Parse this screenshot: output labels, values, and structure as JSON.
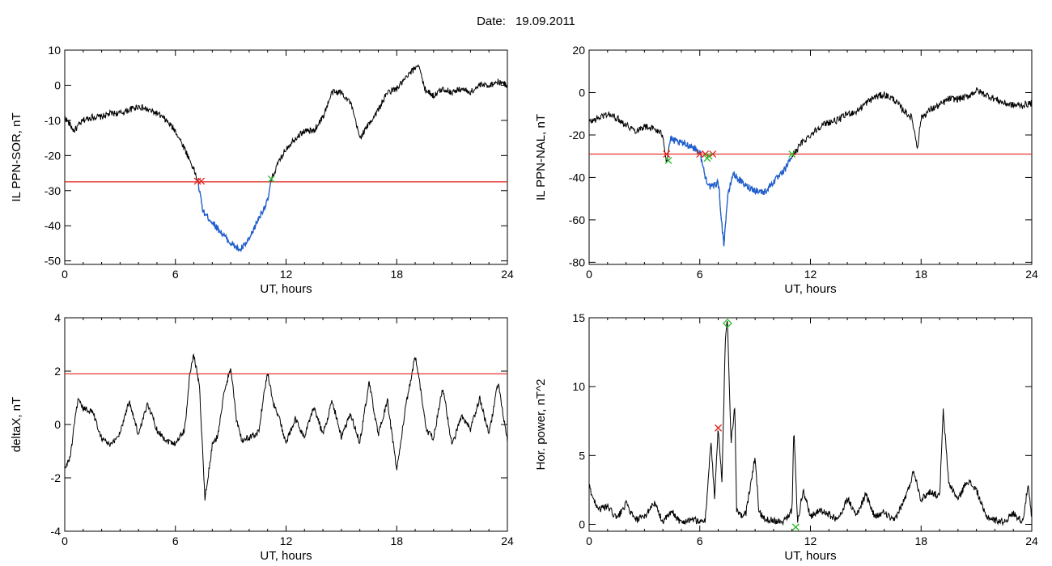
{
  "header": {
    "date_label": "Date:",
    "date_value": "19.09.2011"
  },
  "chart_data": [
    {
      "type": "line",
      "ylabel": "IL PPN-SOR, nT",
      "xlabel": "UT, hours",
      "xlim": [
        0,
        24
      ],
      "ylim": [
        -51,
        10
      ],
      "xticks": [
        0,
        6,
        12,
        18,
        24
      ],
      "yticks": [
        10,
        0,
        -10,
        -20,
        -30,
        -40,
        -50
      ],
      "threshold": -27.5,
      "colors": {
        "trace": "#000000",
        "highlight": "#1f5fd0",
        "threshold": "#e0201a",
        "start_marker": "#e0201a",
        "end_marker": "#22bb22"
      },
      "highlight_range": [
        7.2,
        11.2
      ],
      "markers": [
        {
          "x": 7.2,
          "y": -27.3,
          "shape": "x",
          "color": "start"
        },
        {
          "x": 7.4,
          "y": -27.3,
          "shape": "x",
          "color": "start"
        },
        {
          "x": 11.2,
          "y": -26.7,
          "shape": "x",
          "color": "end"
        }
      ],
      "x": [
        0,
        0.5,
        1,
        1.5,
        2,
        2.5,
        3,
        3.5,
        4,
        4.5,
        5,
        5.5,
        6,
        6.5,
        7,
        7.2,
        7.5,
        8,
        8.5,
        9,
        9.5,
        10,
        10.5,
        11,
        11.2,
        11.5,
        12,
        12.5,
        13,
        13.5,
        14,
        14.5,
        15,
        15.5,
        16,
        16.5,
        17,
        17.5,
        18,
        18.5,
        19,
        19.2,
        19.5,
        20,
        20.5,
        21,
        21.5,
        22,
        22.5,
        23,
        23.5,
        24
      ],
      "y": [
        -9,
        -13,
        -10,
        -9,
        -9,
        -8,
        -8,
        -7,
        -6,
        -7,
        -8,
        -10,
        -13,
        -18,
        -24,
        -27,
        -36,
        -39,
        -42,
        -45,
        -47,
        -44,
        -38,
        -33,
        -27,
        -23,
        -18,
        -15,
        -13,
        -13,
        -9,
        -2,
        -2,
        -5,
        -15,
        -11,
        -7,
        -2,
        -1,
        2,
        5,
        6,
        -1,
        -3,
        -1,
        -2,
        -1,
        -2,
        0,
        0,
        1,
        0
      ],
      "noise": 0.9
    },
    {
      "type": "line",
      "ylabel": "IL PPN-NAL, nT",
      "xlabel": "UT, hours",
      "xlim": [
        0,
        24
      ],
      "ylim": [
        -81,
        20
      ],
      "xticks": [
        0,
        6,
        12,
        18,
        24
      ],
      "yticks": [
        20,
        0,
        -20,
        -40,
        -60,
        -80
      ],
      "threshold": -29,
      "colors": {
        "trace": "#000000",
        "highlight": "#1f5fd0",
        "threshold": "#e0201a",
        "start_marker": "#e0201a",
        "end_marker": "#22bb22"
      },
      "highlight_range": [
        4.3,
        11.0
      ],
      "markers": [
        {
          "x": 4.2,
          "y": -29,
          "shape": "x",
          "color": "start"
        },
        {
          "x": 4.3,
          "y": -32,
          "shape": "x",
          "color": "end"
        },
        {
          "x": 6.0,
          "y": -29,
          "shape": "x",
          "color": "start"
        },
        {
          "x": 6.3,
          "y": -29,
          "shape": "x",
          "color": "start"
        },
        {
          "x": 6.4,
          "y": -31,
          "shape": "x",
          "color": "end"
        },
        {
          "x": 6.7,
          "y": -29,
          "shape": "x",
          "color": "start"
        },
        {
          "x": 6.5,
          "y": -30,
          "shape": "x",
          "color": "end"
        },
        {
          "x": 11.0,
          "y": -29,
          "shape": "x",
          "color": "end"
        }
      ],
      "x": [
        0,
        0.5,
        1,
        1.5,
        2,
        2.5,
        3,
        3.5,
        4,
        4.2,
        4.4,
        5,
        5.5,
        6,
        6.3,
        6.6,
        7,
        7.3,
        7.5,
        7.8,
        8,
        8.5,
        9,
        9.5,
        10,
        10.5,
        11,
        11.5,
        12,
        12.5,
        13,
        13.5,
        14,
        14.5,
        15,
        15.5,
        16,
        16.5,
        17,
        17.5,
        17.8,
        18,
        18.5,
        19,
        19.5,
        20,
        20.5,
        21,
        21.5,
        22,
        22.5,
        23,
        23.5,
        24
      ],
      "y": [
        -14,
        -12,
        -10,
        -12,
        -15,
        -18,
        -16,
        -17,
        -20,
        -33,
        -22,
        -24,
        -25,
        -28,
        -40,
        -45,
        -42,
        -72,
        -50,
        -38,
        -40,
        -44,
        -46,
        -47,
        -42,
        -38,
        -30,
        -24,
        -20,
        -16,
        -14,
        -13,
        -10,
        -9,
        -5,
        -2,
        -1,
        -3,
        -8,
        -12,
        -26,
        -12,
        -8,
        -6,
        -3,
        -3,
        -2,
        1,
        -1,
        -3,
        -5,
        -6,
        -6,
        -5
      ],
      "noise": 1.6
    },
    {
      "type": "line",
      "ylabel": "deltaX, nT",
      "xlabel": "UT, hours",
      "xlim": [
        0,
        24
      ],
      "ylim": [
        -4,
        4
      ],
      "xticks": [
        0,
        6,
        12,
        18,
        24
      ],
      "yticks": [
        4,
        2,
        0,
        -2,
        -4
      ],
      "threshold": 1.9,
      "colors": {
        "trace": "#000000",
        "threshold": "#e0201a"
      },
      "markers": [],
      "x": [
        0,
        0.3,
        0.7,
        1,
        1.5,
        2,
        2.5,
        3,
        3.5,
        4,
        4.5,
        5,
        5.5,
        6,
        6.5,
        6.8,
        7,
        7.3,
        7.6,
        7.8,
        8,
        8.3,
        8.6,
        9,
        9.3,
        9.6,
        10,
        10.5,
        11,
        11.3,
        11.6,
        12,
        12.5,
        13,
        13.5,
        14,
        14.5,
        15,
        15.5,
        16,
        16.5,
        17,
        17.5,
        18,
        18.5,
        19,
        19.3,
        19.6,
        20,
        20.5,
        21,
        21.5,
        22,
        22.5,
        23,
        23.5,
        23.8,
        24
      ],
      "y": [
        -1.7,
        -1.2,
        0.9,
        0.6,
        0.5,
        -0.5,
        -0.8,
        -0.3,
        0.9,
        -0.4,
        0.8,
        -0.2,
        -0.6,
        -0.7,
        -0.2,
        2.0,
        2.6,
        1.5,
        -2.8,
        -1.8,
        -0.8,
        -0.4,
        1.0,
        2.2,
        0.2,
        -0.6,
        -0.5,
        -0.3,
        2.0,
        0.8,
        0.3,
        -0.7,
        0.2,
        -0.5,
        0.7,
        -0.4,
        0.9,
        -0.5,
        0.4,
        -0.7,
        1.6,
        -0.4,
        0.9,
        -1.7,
        0.7,
        2.6,
        1.3,
        -0.2,
        -0.5,
        1.4,
        -0.8,
        0.3,
        -0.2,
        1.0,
        -0.4,
        1.6,
        0.2,
        -0.6
      ],
      "noise": 0.12
    },
    {
      "type": "line",
      "ylabel": "Hor. power, nT^2",
      "xlabel": "UT, hours",
      "xlim": [
        0,
        24
      ],
      "ylim": [
        -0.5,
        15
      ],
      "xticks": [
        0,
        6,
        12,
        18,
        24
      ],
      "yticks": [
        15,
        10,
        5,
        0
      ],
      "colors": {
        "trace": "#000000",
        "start_marker": "#e0201a",
        "end_marker": "#22bb22"
      },
      "markers": [
        {
          "x": 7.0,
          "y": 7.0,
          "shape": "x",
          "color": "start"
        },
        {
          "x": 7.5,
          "y": 14.6,
          "shape": "diamond",
          "color": "end"
        },
        {
          "x": 11.2,
          "y": -0.2,
          "shape": "x",
          "color": "end"
        }
      ],
      "x": [
        0,
        0.3,
        0.6,
        1,
        1.5,
        2,
        2.5,
        3,
        3.5,
        4,
        4.5,
        5,
        5.5,
        6,
        6.3,
        6.6,
        6.8,
        7,
        7.2,
        7.4,
        7.5,
        7.7,
        7.9,
        8,
        8.2,
        8.5,
        9,
        9.2,
        9.5,
        10,
        10.5,
        11,
        11.1,
        11.3,
        11.6,
        12,
        12.5,
        13,
        13.5,
        14,
        14.5,
        15,
        15.5,
        16,
        16.5,
        17,
        17.3,
        17.6,
        18,
        18.5,
        19,
        19.2,
        19.5,
        20,
        20.5,
        21,
        21.5,
        22,
        22.5,
        23,
        23.5,
        23.8,
        24
      ],
      "y": [
        2.8,
        1.6,
        1.1,
        1.3,
        0.4,
        1.5,
        0.3,
        0.5,
        1.6,
        0.2,
        0.9,
        0.1,
        0.4,
        0.2,
        0.3,
        6.0,
        2.0,
        7.0,
        3.0,
        14.0,
        14.6,
        6.0,
        8.5,
        1.0,
        0.6,
        0.8,
        4.9,
        1.0,
        0.4,
        0.3,
        0.2,
        1.0,
        7.0,
        0.1,
        2.5,
        0.6,
        1.0,
        0.7,
        0.3,
        1.9,
        0.6,
        2.2,
        0.5,
        0.9,
        0.2,
        1.5,
        2.5,
        3.9,
        1.8,
        2.4,
        2.0,
        8.2,
        3.0,
        1.8,
        3.2,
        2.5,
        0.6,
        0.3,
        0.2,
        0.8,
        0.2,
        2.8,
        0.4
      ],
      "noise": 0.25
    }
  ]
}
